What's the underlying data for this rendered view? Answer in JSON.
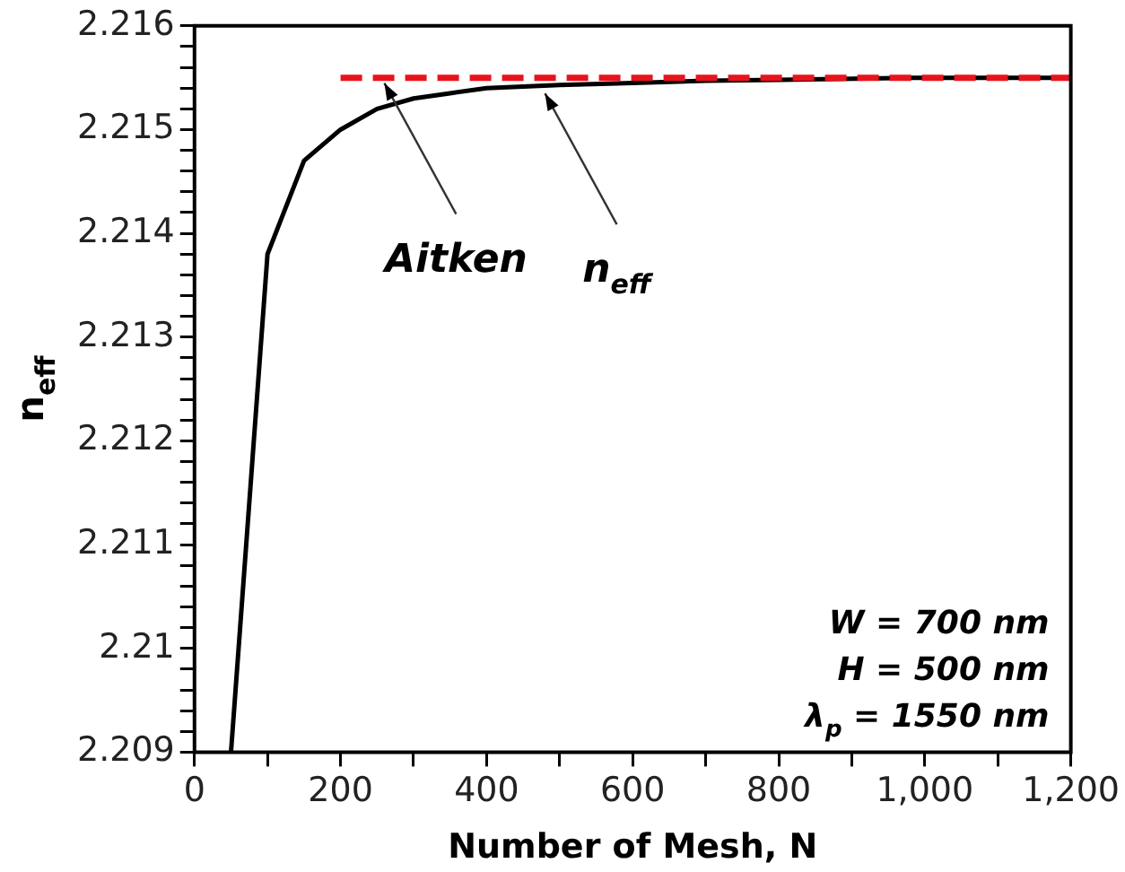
{
  "chart_data": {
    "type": "line",
    "xlabel": "Number of Mesh, N",
    "ylabel": "n$_{eff}$",
    "series": [
      {
        "color": "#000000",
        "line_style": "solid",
        "x": [
          50,
          100,
          150,
          200,
          250,
          300,
          350,
          400,
          500,
          600,
          700,
          800,
          1000,
          1200
        ],
        "values": [
          2.209,
          2.2138,
          2.2147,
          2.215,
          2.2152,
          2.2153,
          2.21535,
          2.2154,
          2.21543,
          2.21545,
          2.21547,
          2.21548,
          2.2155,
          2.2155
        ]
      },
      {
        "color": "#e8141b",
        "line_style": "dashed",
        "x": [
          200,
          1200
        ],
        "values": [
          2.2155,
          2.2155
        ]
      }
    ],
    "xlim": [
      0,
      1200
    ],
    "xticks": [
      0,
      {
        "value": 100,
        "label": null
      },
      200,
      {
        "value": 300,
        "label": null
      },
      400,
      {
        "value": 500,
        "label": null
      },
      600,
      {
        "value": 700,
        "label": null
      },
      800,
      {
        "value": 900,
        "label": null
      },
      {
        "value": 1000,
        "label": "1,000"
      },
      {
        "value": 1100,
        "label": null
      },
      {
        "value": 1200,
        "label": "1,200"
      }
    ],
    "ylim": [
      2.209,
      2.216
    ],
    "yticks": [
      2.209,
      {
        "value": 2.2092,
        "label": null
      },
      {
        "value": 2.2094,
        "label": null
      },
      {
        "value": 2.2096,
        "label": null
      },
      {
        "value": 2.2098,
        "label": null
      },
      {
        "value": 2.21,
        "label": "2.21"
      },
      {
        "value": 2.2102,
        "label": null
      },
      {
        "value": 2.2104,
        "label": null
      },
      {
        "value": 2.2106,
        "label": null
      },
      {
        "value": 2.2108,
        "label": null
      },
      2.211,
      {
        "value": 2.2112,
        "label": null
      },
      {
        "value": 2.2114,
        "label": null
      },
      {
        "value": 2.2116,
        "label": null
      },
      {
        "value": 2.2118,
        "label": null
      },
      2.212,
      {
        "value": 2.2122,
        "label": null
      },
      {
        "value": 2.2124,
        "label": null
      },
      {
        "value": 2.2126,
        "label": null
      },
      {
        "value": 2.2128,
        "label": null
      },
      2.213,
      {
        "value": 2.2132,
        "label": null
      },
      {
        "value": 2.2134,
        "label": null
      },
      {
        "value": 2.2136,
        "label": null
      },
      {
        "value": 2.2138,
        "label": null
      },
      2.214,
      {
        "value": 2.2142,
        "label": null
      },
      {
        "value": 2.2144,
        "label": null
      },
      {
        "value": 2.2146,
        "label": null
      },
      {
        "value": 2.2148,
        "label": null
      },
      2.215,
      {
        "value": 2.2152,
        "label": null
      },
      {
        "value": 2.2154,
        "label": null
      },
      {
        "value": 2.2156,
        "label": null
      },
      {
        "value": 2.2158,
        "label": null
      },
      2.216
    ],
    "grid": false,
    "legend": false,
    "marker": "none",
    "annotations": [
      {
        "text": "Aitken",
        "x": 260,
        "y": 2.2155
      },
      {
        "text": "n$_{eff}$",
        "x": 480,
        "y": 2.2154
      },
      "W = 700 nm",
      "H = 500 nm",
      "λ$_{p}$ = 1550 nm"
    ]
  }
}
